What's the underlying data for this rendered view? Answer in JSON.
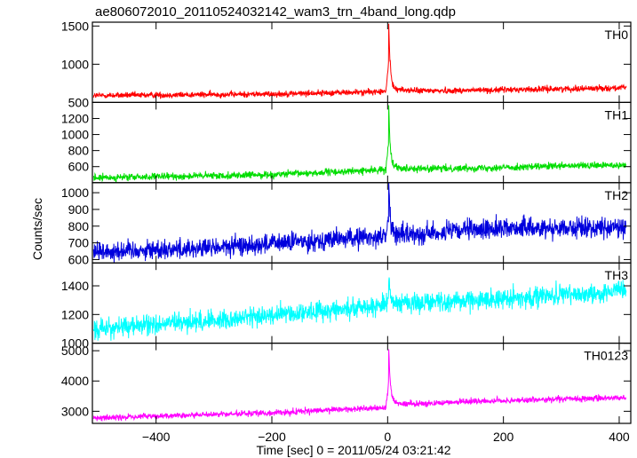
{
  "chart_data": {
    "type": "line",
    "title": "ae806072010_20110524032142_wam3_trn_4band_long.qdp",
    "xlabel": "Time [sec] 0 = 2011/05/24 03:21:42",
    "ylabel": "Counts/sec",
    "xlim": [
      -510,
      420
    ],
    "xticks": [
      -400,
      -200,
      0,
      200,
      400
    ],
    "grid": false,
    "panels": [
      {
        "name": "TH0",
        "color": "#ff0000",
        "ylim": [
          500,
          1550
        ],
        "yticks": [
          500,
          1000,
          1500
        ],
        "baseline": [
          [
            -500,
            590
          ],
          [
            -200,
            610
          ],
          [
            -5,
            640
          ],
          [
            400,
            690
          ]
        ],
        "noise": 20,
        "peak": {
          "x": 2,
          "value": 1520,
          "post": 700
        },
        "x": [
          -500,
          -400,
          -300,
          -200,
          -100,
          0,
          2,
          20,
          100,
          200,
          300,
          400
        ],
        "values": [
          590,
          595,
          600,
          610,
          625,
          640,
          1520,
          700,
          660,
          670,
          680,
          690
        ]
      },
      {
        "name": "TH1",
        "color": "#00dd00",
        "ylim": [
          400,
          1400
        ],
        "yticks": [
          600,
          800,
          1000,
          1200
        ],
        "baseline": [
          [
            -500,
            460
          ],
          [
            -200,
            500
          ],
          [
            -5,
            560
          ],
          [
            400,
            620
          ]
        ],
        "noise": 22,
        "peak": {
          "x": 2,
          "value": 1350,
          "post": 620
        },
        "x": [
          -500,
          -400,
          -300,
          -200,
          -100,
          0,
          2,
          20,
          100,
          200,
          300,
          400
        ],
        "values": [
          460,
          470,
          485,
          500,
          530,
          560,
          1350,
          620,
          590,
          600,
          610,
          620
        ]
      },
      {
        "name": "TH2",
        "color": "#0000dd",
        "ylim": [
          580,
          1060
        ],
        "yticks": [
          600,
          700,
          800,
          900,
          1000
        ],
        "baseline": [
          [
            -500,
            650
          ],
          [
            -300,
            670
          ],
          [
            -100,
            720
          ],
          [
            0,
            740
          ],
          [
            200,
            790
          ],
          [
            400,
            790
          ]
        ],
        "noise": 30,
        "peak": {
          "x": 2,
          "value": 1040,
          "post": 760
        },
        "x": [
          -500,
          -400,
          -300,
          -200,
          -100,
          0,
          2,
          20,
          100,
          200,
          300,
          400
        ],
        "values": [
          650,
          660,
          670,
          700,
          720,
          740,
          1040,
          760,
          770,
          790,
          790,
          790
        ]
      },
      {
        "name": "TH3",
        "color": "#00ffff",
        "ylim": [
          1000,
          1560
        ],
        "yticks": [
          1000,
          1200,
          1400
        ],
        "baseline": [
          [
            -500,
            1100
          ],
          [
            -300,
            1160
          ],
          [
            -100,
            1230
          ],
          [
            0,
            1270
          ],
          [
            200,
            1310
          ],
          [
            400,
            1360
          ]
        ],
        "noise": 35,
        "peak": {
          "x": 2,
          "value": 1440,
          "post": 1300
        },
        "x": [
          -500,
          -400,
          -300,
          -200,
          -100,
          0,
          2,
          20,
          100,
          200,
          300,
          400
        ],
        "values": [
          1100,
          1130,
          1160,
          1200,
          1230,
          1270,
          1440,
          1300,
          1300,
          1310,
          1340,
          1360
        ]
      },
      {
        "name": "TH0123",
        "color": "#ff00ff",
        "ylim": [
          2600,
          5250
        ],
        "yticks": [
          3000,
          4000,
          5000
        ],
        "baseline": [
          [
            -500,
            2780
          ],
          [
            -200,
            2950
          ],
          [
            -5,
            3120
          ],
          [
            100,
            3300
          ],
          [
            400,
            3450
          ]
        ],
        "noise": 50,
        "peak": {
          "x": 2,
          "value": 5100,
          "post": 3400
        },
        "x": [
          -500,
          -400,
          -300,
          -200,
          -100,
          0,
          2,
          20,
          100,
          200,
          300,
          400
        ],
        "values": [
          2780,
          2830,
          2890,
          2950,
          3050,
          3120,
          5100,
          3400,
          3300,
          3350,
          3400,
          3450
        ]
      }
    ]
  }
}
